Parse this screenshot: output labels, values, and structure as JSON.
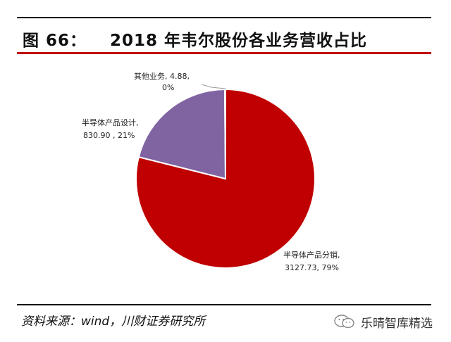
{
  "header": {
    "figure_label": "图 66：",
    "title": "2018 年韦尔股份各业务营收占比"
  },
  "chart_data": {
    "type": "pie",
    "title": "2018 年韦尔股份各业务营收占比",
    "slices": [
      {
        "name": "半导体产品分销",
        "value": 3127.73,
        "percent": 79,
        "color": "#c00000",
        "label_lines": [
          "半导体产品分销,",
          "3127.73, 79%"
        ]
      },
      {
        "name": "半导体产品设计",
        "value": 830.9,
        "percent": 21,
        "color": "#8064a2",
        "label_lines": [
          "半导体产品设计,",
          "830.90 , 21%"
        ]
      },
      {
        "name": "其他业务",
        "value": 4.88,
        "percent": 0,
        "color": "#9bbb59",
        "label_lines": [
          "其他业务, 4.88,",
          "0%"
        ]
      }
    ],
    "start_angle_deg": 0,
    "direction": "clockwise"
  },
  "footer": {
    "source": "资料来源：wind，川财证券研究所",
    "watermark": "乐晴智库精选",
    "watermark_icon": "wechat-icon"
  }
}
